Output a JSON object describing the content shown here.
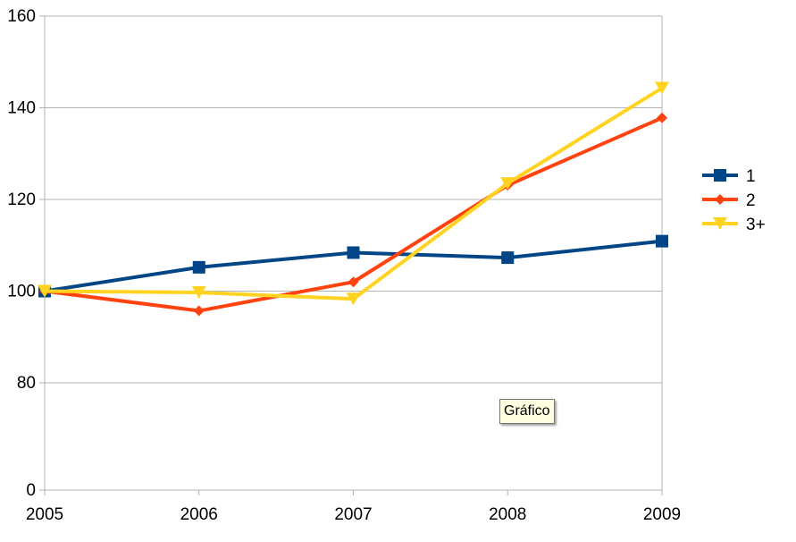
{
  "chart_data": {
    "type": "line",
    "categories": [
      "2005",
      "2006",
      "2007",
      "2008",
      "2009"
    ],
    "y_ticks": [
      0,
      80,
      100,
      120,
      140,
      160
    ],
    "ylim": [
      0,
      160
    ],
    "y_axis_note": "broken axis: gap between 0 and 80",
    "grid": "horizontal",
    "legend_position": "right",
    "series": [
      {
        "name": "1",
        "color": "#004586",
        "marker": "square",
        "values": [
          100,
          105.2,
          108.4,
          107.3,
          110.9
        ]
      },
      {
        "name": "2",
        "color": "#ff420e",
        "marker": "diamond",
        "values": [
          100,
          95.7,
          102.0,
          123.1,
          137.8
        ]
      },
      {
        "name": "3+",
        "color": "#ffd320",
        "marker": "triangle-down",
        "values": [
          100,
          99.7,
          98.3,
          123.5,
          144.3
        ]
      }
    ]
  },
  "tooltip": {
    "text": "Gráfico"
  }
}
